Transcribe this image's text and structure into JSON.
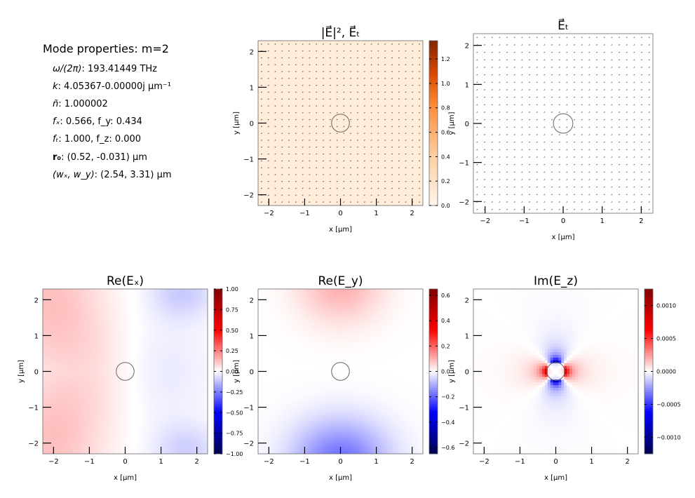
{
  "mode_properties": {
    "heading": "Mode properties: m=2",
    "rows": [
      {
        "label": "ω/(2π)",
        "value": ": 193.41449 THz"
      },
      {
        "label": "k",
        "value": ": 4.05367-0.00000j μm⁻¹"
      },
      {
        "label": "ñ",
        "value": ": 1.000002"
      },
      {
        "label": "fₓ",
        "value": ":  0.566, f_y: 0.434"
      },
      {
        "label": "fₜ",
        "value": ":  1.000, f_z: 0.000"
      },
      {
        "label": "r₀",
        "value": ":  (0.52, -0.031) μm"
      },
      {
        "label": "(wₓ, w_y)",
        "value": ":  (2.54, 3.31) μm"
      }
    ]
  },
  "chart_data": [
    {
      "type": "heatmap",
      "title": "|E⃗|²,  E⃗ₜ",
      "xlabel": "x [μm]",
      "ylabel": "y [μm]",
      "xlim": [
        -2.3,
        2.3
      ],
      "ylim": [
        -2.3,
        2.3
      ],
      "xticks": [
        -2,
        -1,
        0,
        1,
        2
      ],
      "yticks": [
        -2,
        -1,
        0,
        1,
        2
      ],
      "xtick_labels": [
        "−2",
        "−1",
        "0",
        "1",
        "2"
      ],
      "ytick_labels": [
        "−2",
        "−1",
        "0",
        "1",
        "2"
      ],
      "colormap": "Oranges",
      "colorbar": {
        "vmin": 0.0,
        "vmax": 1.35,
        "ticks": [
          0.0,
          0.2,
          0.4,
          0.6,
          0.8,
          1.0,
          1.2
        ],
        "tick_labels": [
          "0.0",
          "0.2",
          "0.4",
          "0.6",
          "0.8",
          "1.0",
          "1.2"
        ]
      },
      "field": "uniform",
      "field_level": 0.1,
      "quiver": true,
      "circle": {
        "cx": 0,
        "cy": 0,
        "r": 0.25
      }
    },
    {
      "type": "quiver",
      "title": "E⃗ₜ",
      "xlabel": "x [μm]",
      "ylabel": "y [μm]",
      "xlim": [
        -2.3,
        2.3
      ],
      "ylim": [
        -2.3,
        2.3
      ],
      "xticks": [
        -2,
        -1,
        0,
        1,
        2
      ],
      "yticks": [
        -2,
        -1,
        0,
        1,
        2
      ],
      "xtick_labels": [
        "−2",
        "−1",
        "0",
        "1",
        "2"
      ],
      "ytick_labels": [
        "−2",
        "−1",
        "0",
        "1",
        "2"
      ],
      "colorbar": null,
      "field": "none",
      "quiver": true,
      "circle": {
        "cx": 0,
        "cy": 0,
        "r": 0.25
      }
    },
    {
      "type": "heatmap",
      "title": "Re(Eₓ)",
      "xlabel": "x [μm]",
      "ylabel": "y [μm]",
      "xlim": [
        -2.3,
        2.3
      ],
      "ylim": [
        -2.3,
        2.3
      ],
      "xticks": [
        -2,
        -1,
        0,
        1,
        2
      ],
      "yticks": [
        -2,
        -1,
        0,
        1,
        2
      ],
      "xtick_labels": [
        "−2",
        "−1",
        "0",
        "1",
        "2"
      ],
      "ytick_labels": [
        "−2",
        "−1",
        "0",
        "1",
        "2"
      ],
      "colormap": "seismic",
      "colorbar": {
        "vmin": -1.0,
        "vmax": 1.0,
        "ticks": [
          -1.0,
          -0.75,
          -0.5,
          -0.25,
          0.0,
          0.25,
          0.5,
          0.75,
          1.0
        ],
        "tick_labels": [
          "−1.00",
          "−0.75",
          "−0.50",
          "−0.25",
          "0.00",
          "0.25",
          "0.50",
          "0.75",
          "1.00"
        ]
      },
      "field": "ex",
      "quiver": false,
      "circle": {
        "cx": 0,
        "cy": 0,
        "r": 0.25
      }
    },
    {
      "type": "heatmap",
      "title": "Re(E_y)",
      "xlabel": "x [μm]",
      "ylabel": "y [μm]",
      "xlim": [
        -2.3,
        2.3
      ],
      "ylim": [
        -2.3,
        2.3
      ],
      "xticks": [
        -2,
        -1,
        0,
        1,
        2
      ],
      "yticks": [
        -2,
        -1,
        0,
        1,
        2
      ],
      "xtick_labels": [
        "−2",
        "−1",
        "0",
        "1",
        "2"
      ],
      "ytick_labels": [
        "−2",
        "−1",
        "0",
        "1",
        "2"
      ],
      "colormap": "seismic",
      "colorbar": {
        "vmin": -0.65,
        "vmax": 0.65,
        "ticks": [
          -0.6,
          -0.4,
          -0.2,
          0.0,
          0.2,
          0.4,
          0.6
        ],
        "tick_labels": [
          "−0.6",
          "−0.4",
          "−0.2",
          "0.0",
          "0.2",
          "0.4",
          "0.6"
        ]
      },
      "field": "ey",
      "quiver": false,
      "circle": {
        "cx": 0,
        "cy": 0,
        "r": 0.25
      }
    },
    {
      "type": "heatmap",
      "title": "Im(E_z)",
      "xlabel": "x [μm]",
      "ylabel": "y [μm]",
      "xlim": [
        -2.3,
        2.3
      ],
      "ylim": [
        -2.3,
        2.3
      ],
      "xticks": [
        -2,
        -1,
        0,
        1,
        2
      ],
      "yticks": [
        -2,
        -1,
        0,
        1,
        2
      ],
      "xtick_labels": [
        "−2",
        "−1",
        "0",
        "1",
        "2"
      ],
      "ytick_labels": [
        "−2",
        "−1",
        "0",
        "1",
        "2"
      ],
      "colormap": "seismic",
      "colorbar": {
        "vmin": -0.00125,
        "vmax": 0.00125,
        "ticks": [
          -0.001,
          -0.0005,
          0.0,
          0.0005,
          0.001
        ],
        "tick_labels": [
          "−0.0010",
          "−0.0005",
          "0.0000",
          "0.0005",
          "0.0010"
        ]
      },
      "field": "ez",
      "quiver": false,
      "circle": {
        "cx": 0,
        "cy": 0,
        "r": 0.25
      }
    }
  ]
}
